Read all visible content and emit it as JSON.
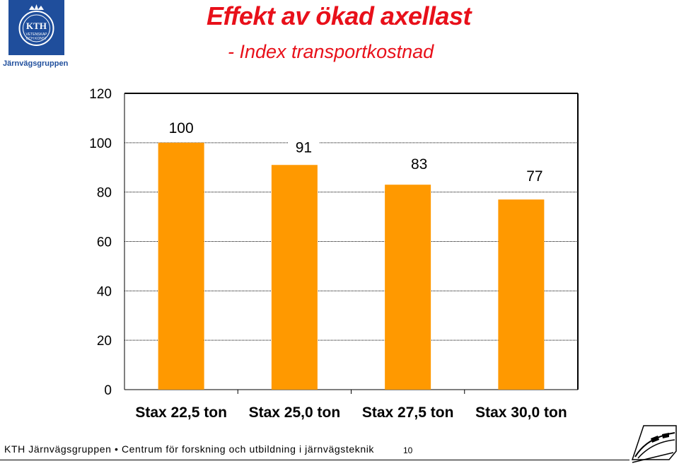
{
  "header": {
    "logo_text_top": "KTH",
    "logo_text_mid": "VETENSKAP",
    "logo_text_bot": "OCH KONST",
    "logo_group": "Järnvägsgruppen",
    "title": "Effekt av ökad axellast",
    "subtitle": "- Index transportkostnad"
  },
  "chart_data": {
    "type": "bar",
    "categories": [
      "Stax 22,5 ton",
      "Stax 25,0 ton",
      "Stax 27,5 ton",
      "Stax 30,0 ton"
    ],
    "values": [
      100,
      91,
      83,
      77
    ],
    "data_labels": [
      "100",
      "91",
      "83",
      "77"
    ],
    "ylim": [
      0,
      120
    ],
    "yticks": [
      "0",
      "20",
      "40",
      "60",
      "80",
      "100",
      "120"
    ],
    "grid": true,
    "bar_color": "#ff9900",
    "title": "",
    "xlabel": "",
    "ylabel": ""
  },
  "footer": {
    "text": "KTH Järnvägsgruppen • Centrum för forskning och utbildning i järnvägsteknik",
    "page_number": "10"
  }
}
